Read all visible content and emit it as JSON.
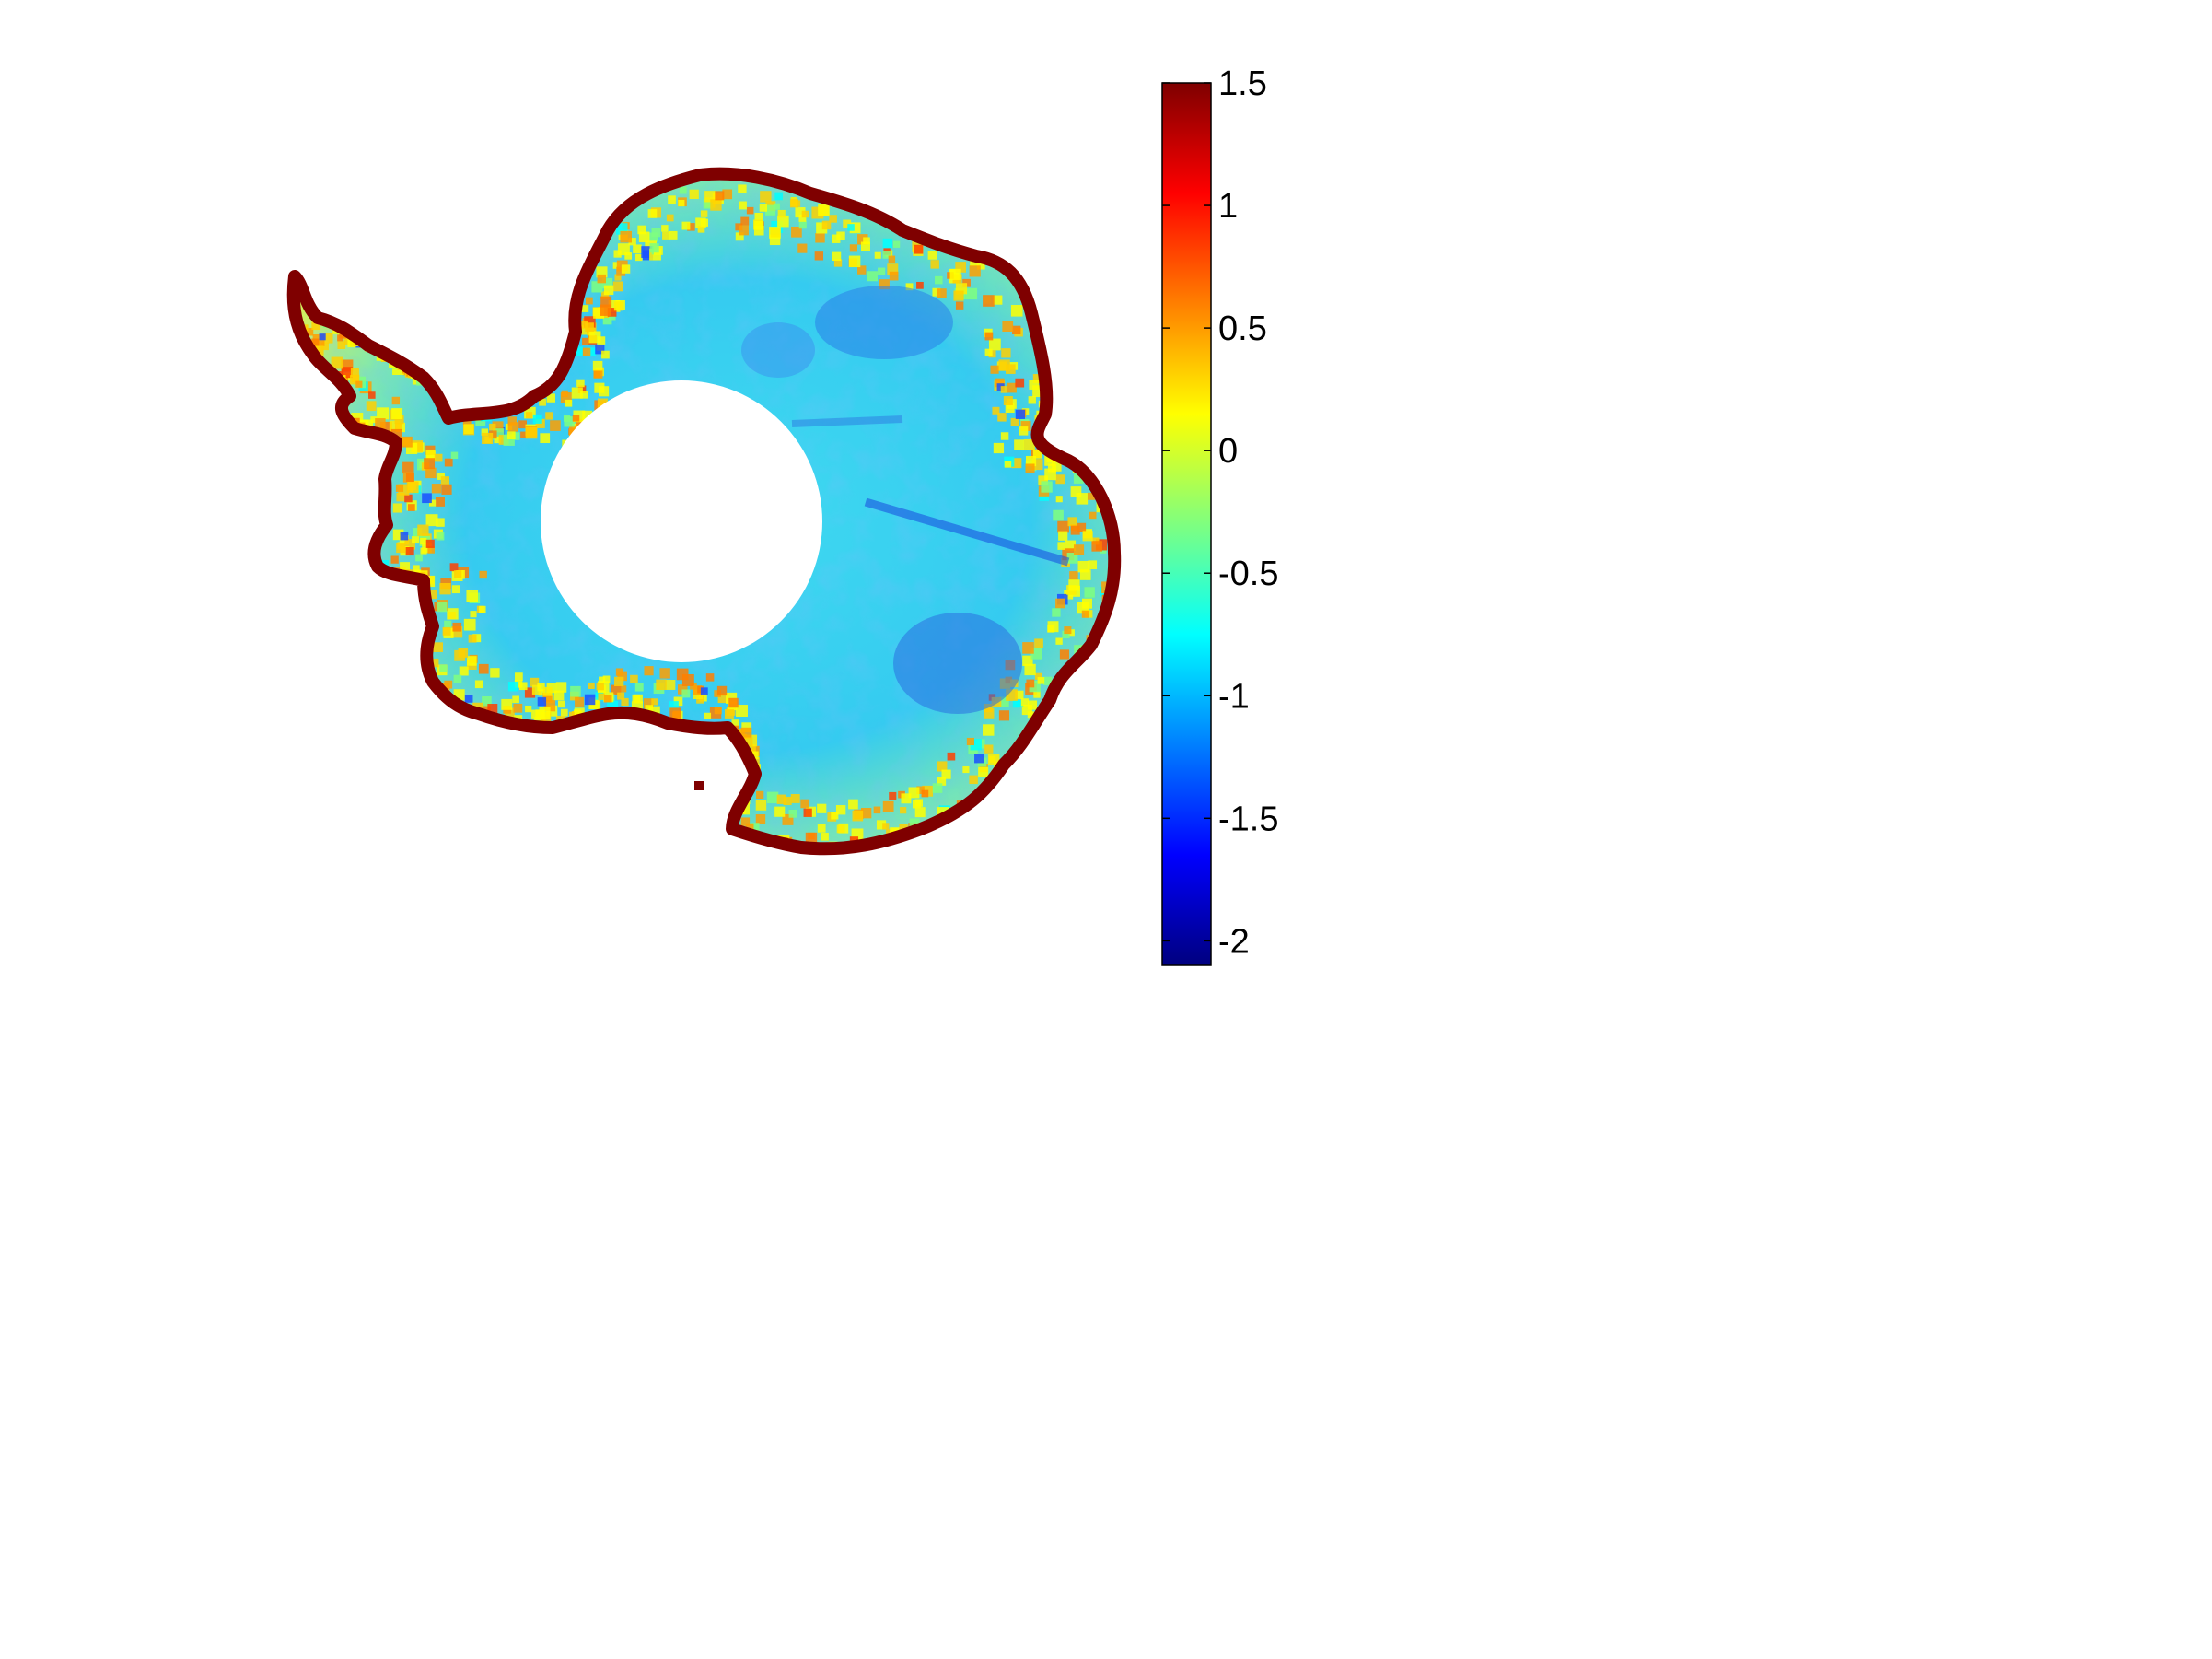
{
  "colorbar": {
    "colormap": "jet",
    "min": -2.1,
    "max": 1.5,
    "ticks": [
      {
        "value": 1.5,
        "label": "1.5"
      },
      {
        "value": 1,
        "label": "1"
      },
      {
        "value": 0.5,
        "label": "0.5"
      },
      {
        "value": 0,
        "label": "0"
      },
      {
        "value": -0.5,
        "label": "-0.5"
      },
      {
        "value": -1,
        "label": "-1"
      },
      {
        "value": -1.5,
        "label": "-1.5"
      },
      {
        "value": -2,
        "label": "-2"
      }
    ]
  },
  "map": {
    "region": "Antarctica",
    "projection": "polar stereographic",
    "coastline_color": "#7f0000",
    "data_gap_color": "#ffffff",
    "dominant_interior_value": -0.7,
    "coastal_value_range": [
      -0.3,
      0.6
    ]
  },
  "colors": {
    "jet_stops": [
      "#00007f",
      "#0000ff",
      "#007fff",
      "#00ffff",
      "#7fff7f",
      "#ffff00",
      "#ff7f00",
      "#ff0000",
      "#7f0000"
    ]
  }
}
